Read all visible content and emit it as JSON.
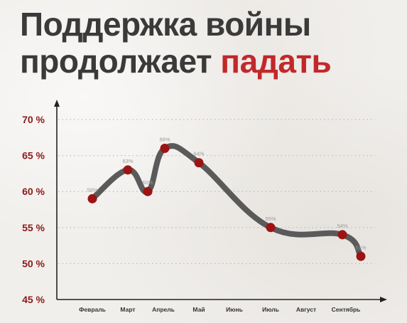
{
  "title": {
    "line1": "Поддержка войны",
    "line2_prefix": "продолжает",
    "line2_accent": "падать"
  },
  "colors": {
    "title": "#3a3a3a",
    "accent": "#c2282b",
    "axis_label": "#8b1a1a",
    "line": "#5a5a5a",
    "marker": "#9b1414",
    "grid": "#bdbdbd"
  },
  "chart_data": {
    "type": "line",
    "title": "Поддержка войны продолжает падать",
    "xlabel": "",
    "ylabel": "",
    "categories": [
      "Февраль",
      "Март",
      "Апрель",
      "Май",
      "Июнь",
      "Июль",
      "Август",
      "Сентябрь"
    ],
    "y_ticks": [
      "45 %",
      "50 %",
      "55 %",
      "60 %",
      "65 %",
      "70 %"
    ],
    "ylim": [
      45,
      70
    ],
    "grid": "horizontal dotted",
    "series": [
      {
        "points": [
          {
            "x": "Февраль",
            "y": 59,
            "label": "59%"
          },
          {
            "x": "Март",
            "y": 63,
            "label": "63%"
          },
          {
            "x": "Март",
            "y": 60,
            "label": "60%"
          },
          {
            "x": "Апрель",
            "y": 66,
            "label": "66%"
          },
          {
            "x": "Май",
            "y": 64,
            "label": "64%"
          },
          {
            "x": "Июль",
            "y": 55,
            "label": "55%"
          },
          {
            "x": "Сентябрь",
            "y": 54,
            "label": "54%"
          },
          {
            "x": "Сентябрь",
            "y": 51,
            "label": "51%"
          }
        ]
      }
    ]
  }
}
